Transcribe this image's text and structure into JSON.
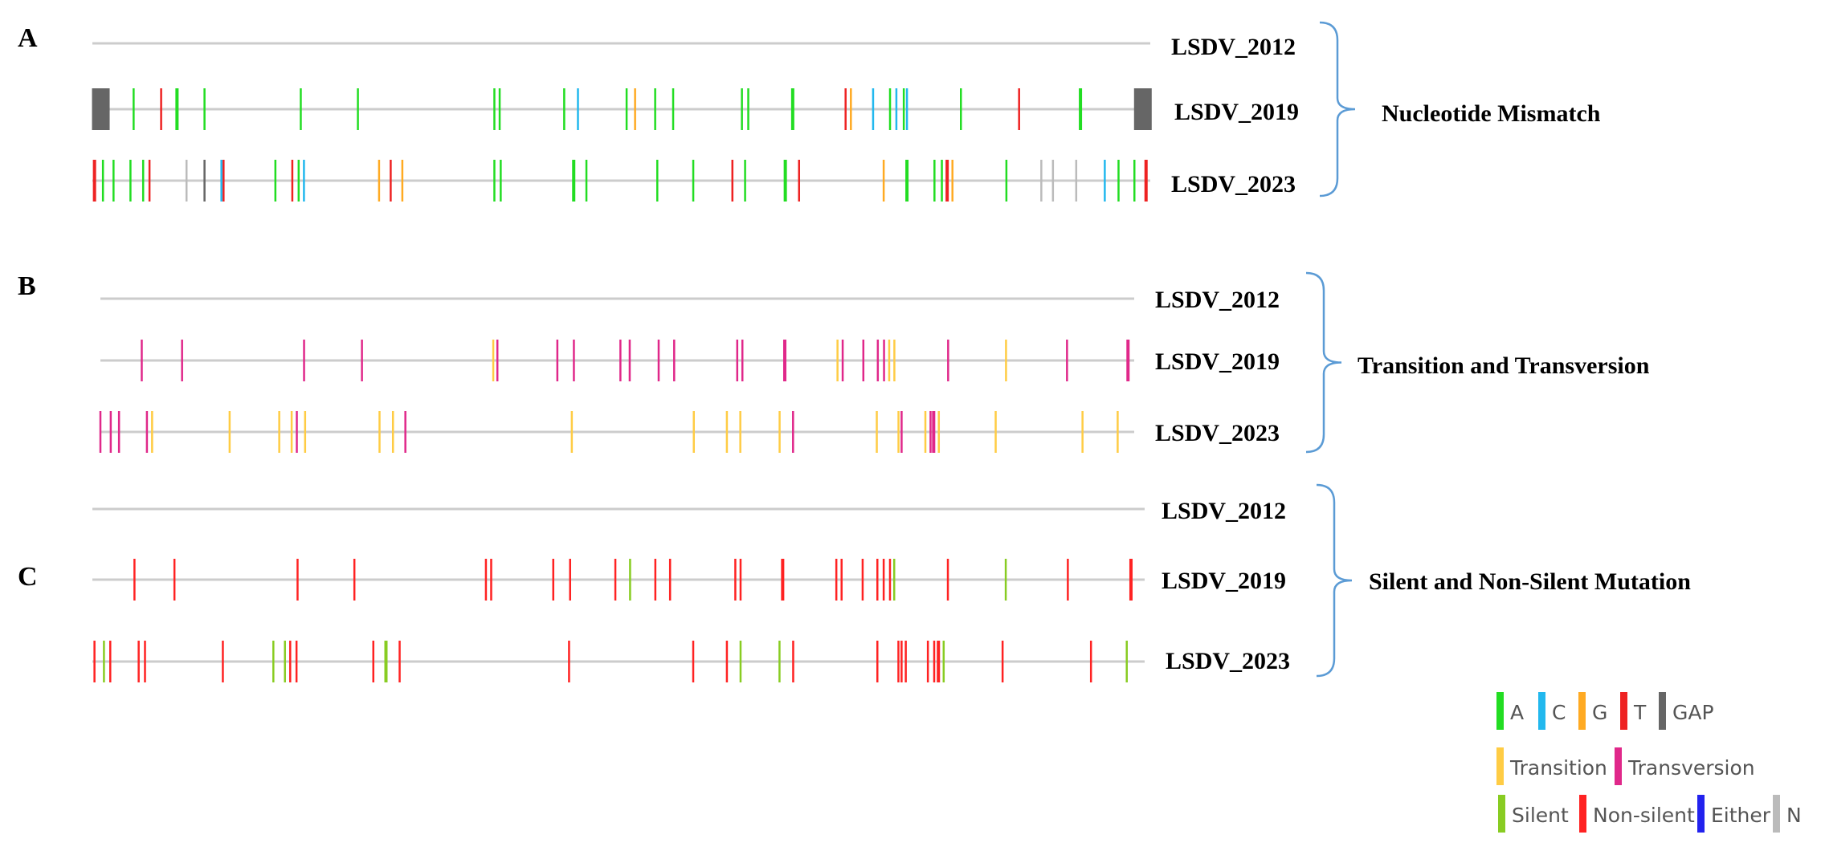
{
  "colors": {
    "A": "#22dd22",
    "C": "#22b8ee",
    "G": "#ffaa22",
    "T": "#ee2222",
    "GAP": "#666666",
    "N": "#bbbbbb",
    "Transition": "#ffcc44",
    "Transversion": "#e0288a",
    "Silent": "#88cc22",
    "Non-silent": "#ff2222",
    "Either": "#2222ee",
    "baseline": "#cccccc",
    "bracket": "#5b9bd5"
  },
  "panels": [
    {
      "id": "A",
      "letter": "A",
      "group_label": "Nucleotide Mismatch",
      "rows": [
        {
          "label": "LSDV_2012",
          "marks": []
        },
        {
          "label": "LSDV_2019",
          "marks": [
            {
              "x": 0.008,
              "c": "GAP",
              "w": "block"
            },
            {
              "x": 0.039,
              "c": "A"
            },
            {
              "x": 0.065,
              "c": "T"
            },
            {
              "x": 0.08,
              "c": "A",
              "s": "strong"
            },
            {
              "x": 0.106,
              "c": "A"
            },
            {
              "x": 0.197,
              "c": "A"
            },
            {
              "x": 0.251,
              "c": "A"
            },
            {
              "x": 0.38,
              "c": "A"
            },
            {
              "x": 0.385,
              "c": "A"
            },
            {
              "x": 0.446,
              "c": "A"
            },
            {
              "x": 0.459,
              "c": "C"
            },
            {
              "x": 0.505,
              "c": "A"
            },
            {
              "x": 0.513,
              "c": "G"
            },
            {
              "x": 0.532,
              "c": "A"
            },
            {
              "x": 0.549,
              "c": "A"
            },
            {
              "x": 0.614,
              "c": "A"
            },
            {
              "x": 0.62,
              "c": "A"
            },
            {
              "x": 0.662,
              "c": "A",
              "s": "strong"
            },
            {
              "x": 0.712,
              "c": "T"
            },
            {
              "x": 0.717,
              "c": "G"
            },
            {
              "x": 0.738,
              "c": "C"
            },
            {
              "x": 0.754,
              "c": "A"
            },
            {
              "x": 0.76,
              "c": "C"
            },
            {
              "x": 0.767,
              "c": "A"
            },
            {
              "x": 0.77,
              "c": "C"
            },
            {
              "x": 0.821,
              "c": "A"
            },
            {
              "x": 0.876,
              "c": "T"
            },
            {
              "x": 0.934,
              "c": "A",
              "s": "strong"
            },
            {
              "x": 0.993,
              "c": "GAP",
              "w": "block"
            }
          ]
        },
        {
          "label": "LSDV_2023",
          "marks": [
            {
              "x": 0.002,
              "c": "T",
              "s": "strong"
            },
            {
              "x": 0.01,
              "c": "A"
            },
            {
              "x": 0.02,
              "c": "A"
            },
            {
              "x": 0.036,
              "c": "A"
            },
            {
              "x": 0.048,
              "c": "A"
            },
            {
              "x": 0.054,
              "c": "T"
            },
            {
              "x": 0.089,
              "c": "N"
            },
            {
              "x": 0.106,
              "c": "GAP"
            },
            {
              "x": 0.122,
              "c": "C"
            },
            {
              "x": 0.124,
              "c": "T"
            },
            {
              "x": 0.173,
              "c": "A"
            },
            {
              "x": 0.189,
              "c": "T"
            },
            {
              "x": 0.195,
              "c": "A"
            },
            {
              "x": 0.2,
              "c": "C"
            },
            {
              "x": 0.271,
              "c": "G"
            },
            {
              "x": 0.282,
              "c": "T"
            },
            {
              "x": 0.293,
              "c": "G"
            },
            {
              "x": 0.38,
              "c": "A"
            },
            {
              "x": 0.386,
              "c": "A"
            },
            {
              "x": 0.455,
              "c": "A",
              "s": "strong"
            },
            {
              "x": 0.467,
              "c": "A"
            },
            {
              "x": 0.534,
              "c": "A"
            },
            {
              "x": 0.568,
              "c": "A"
            },
            {
              "x": 0.605,
              "c": "T"
            },
            {
              "x": 0.617,
              "c": "A"
            },
            {
              "x": 0.655,
              "c": "A",
              "s": "strong"
            },
            {
              "x": 0.668,
              "c": "T"
            },
            {
              "x": 0.748,
              "c": "G"
            },
            {
              "x": 0.77,
              "c": "A",
              "s": "strong"
            },
            {
              "x": 0.796,
              "c": "A"
            },
            {
              "x": 0.803,
              "c": "A"
            },
            {
              "x": 0.808,
              "c": "T",
              "s": "strong"
            },
            {
              "x": 0.813,
              "c": "G"
            },
            {
              "x": 0.864,
              "c": "A"
            },
            {
              "x": 0.897,
              "c": "N"
            },
            {
              "x": 0.908,
              "c": "N"
            },
            {
              "x": 0.93,
              "c": "N"
            },
            {
              "x": 0.957,
              "c": "C"
            },
            {
              "x": 0.97,
              "c": "A"
            },
            {
              "x": 0.985,
              "c": "A"
            },
            {
              "x": 0.996,
              "c": "T",
              "s": "strong"
            }
          ]
        }
      ]
    },
    {
      "id": "B",
      "letter": "B",
      "group_label": "Transition  and Transversion",
      "rows": [
        {
          "label": "LSDV_2012",
          "marks": []
        },
        {
          "label": "LSDV_2019",
          "marks": [
            {
              "x": 0.04,
              "c": "Transversion"
            },
            {
              "x": 0.079,
              "c": "Transversion"
            },
            {
              "x": 0.197,
              "c": "Transversion"
            },
            {
              "x": 0.253,
              "c": "Transversion"
            },
            {
              "x": 0.38,
              "c": "Transition"
            },
            {
              "x": 0.384,
              "c": "Transversion"
            },
            {
              "x": 0.442,
              "c": "Transversion"
            },
            {
              "x": 0.458,
              "c": "Transversion"
            },
            {
              "x": 0.503,
              "c": "Transversion"
            },
            {
              "x": 0.512,
              "c": "Transversion"
            },
            {
              "x": 0.54,
              "c": "Transversion"
            },
            {
              "x": 0.555,
              "c": "Transversion"
            },
            {
              "x": 0.616,
              "c": "Transversion"
            },
            {
              "x": 0.621,
              "c": "Transversion"
            },
            {
              "x": 0.662,
              "c": "Transversion",
              "s": "strong"
            },
            {
              "x": 0.713,
              "c": "Transition"
            },
            {
              "x": 0.718,
              "c": "Transversion"
            },
            {
              "x": 0.738,
              "c": "Transversion"
            },
            {
              "x": 0.752,
              "c": "Transversion"
            },
            {
              "x": 0.758,
              "c": "Transversion"
            },
            {
              "x": 0.763,
              "c": "Transition"
            },
            {
              "x": 0.768,
              "c": "Transition"
            },
            {
              "x": 0.82,
              "c": "Transversion"
            },
            {
              "x": 0.876,
              "c": "Transition"
            },
            {
              "x": 0.935,
              "c": "Transversion"
            },
            {
              "x": 0.994,
              "c": "Transversion",
              "s": "strong"
            }
          ]
        },
        {
          "label": "LSDV_2023",
          "marks": [
            {
              "x": 0.0,
              "c": "Transversion"
            },
            {
              "x": 0.01,
              "c": "Transversion"
            },
            {
              "x": 0.018,
              "c": "Transversion"
            },
            {
              "x": 0.045,
              "c": "Transversion"
            },
            {
              "x": 0.05,
              "c": "Transition"
            },
            {
              "x": 0.125,
              "c": "Transition"
            },
            {
              "x": 0.173,
              "c": "Transition"
            },
            {
              "x": 0.185,
              "c": "Transition"
            },
            {
              "x": 0.19,
              "c": "Transversion"
            },
            {
              "x": 0.198,
              "c": "Transition"
            },
            {
              "x": 0.27,
              "c": "Transition"
            },
            {
              "x": 0.283,
              "c": "Transition"
            },
            {
              "x": 0.295,
              "c": "Transversion"
            },
            {
              "x": 0.456,
              "c": "Transition"
            },
            {
              "x": 0.574,
              "c": "Transition"
            },
            {
              "x": 0.606,
              "c": "Transition"
            },
            {
              "x": 0.619,
              "c": "Transition"
            },
            {
              "x": 0.657,
              "c": "Transition"
            },
            {
              "x": 0.67,
              "c": "Transversion"
            },
            {
              "x": 0.751,
              "c": "Transition"
            },
            {
              "x": 0.772,
              "c": "Transition"
            },
            {
              "x": 0.775,
              "c": "Transversion"
            },
            {
              "x": 0.798,
              "c": "Transition"
            },
            {
              "x": 0.803,
              "c": "Transversion"
            },
            {
              "x": 0.806,
              "c": "Transversion",
              "s": "strong"
            },
            {
              "x": 0.811,
              "c": "Transition"
            },
            {
              "x": 0.866,
              "c": "Transition"
            },
            {
              "x": 0.95,
              "c": "Transition"
            },
            {
              "x": 0.984,
              "c": "Transition"
            }
          ]
        }
      ]
    },
    {
      "id": "C",
      "letter": "C",
      "group_label": "Silent and Non-Silent Mutation",
      "rows": [
        {
          "label": "LSDV_2012",
          "marks": []
        },
        {
          "label": "LSDV_2019",
          "marks": [
            {
              "x": 0.04,
              "c": "Non-silent"
            },
            {
              "x": 0.078,
              "c": "Non-silent"
            },
            {
              "x": 0.195,
              "c": "Non-silent"
            },
            {
              "x": 0.249,
              "c": "Non-silent"
            },
            {
              "x": 0.374,
              "c": "Non-silent"
            },
            {
              "x": 0.379,
              "c": "Non-silent"
            },
            {
              "x": 0.438,
              "c": "Non-silent"
            },
            {
              "x": 0.454,
              "c": "Non-silent"
            },
            {
              "x": 0.497,
              "c": "Non-silent"
            },
            {
              "x": 0.511,
              "c": "Silent"
            },
            {
              "x": 0.535,
              "c": "Non-silent"
            },
            {
              "x": 0.549,
              "c": "Non-silent"
            },
            {
              "x": 0.611,
              "c": "Non-silent"
            },
            {
              "x": 0.616,
              "c": "Non-silent"
            },
            {
              "x": 0.656,
              "c": "Non-silent",
              "s": "strong"
            },
            {
              "x": 0.707,
              "c": "Non-silent"
            },
            {
              "x": 0.712,
              "c": "Non-silent"
            },
            {
              "x": 0.732,
              "c": "Non-silent"
            },
            {
              "x": 0.746,
              "c": "Non-silent"
            },
            {
              "x": 0.752,
              "c": "Non-silent"
            },
            {
              "x": 0.758,
              "c": "Non-silent"
            },
            {
              "x": 0.762,
              "c": "Silent"
            },
            {
              "x": 0.813,
              "c": "Non-silent"
            },
            {
              "x": 0.868,
              "c": "Silent"
            },
            {
              "x": 0.927,
              "c": "Non-silent"
            },
            {
              "x": 0.987,
              "c": "Non-silent",
              "s": "strong"
            }
          ]
        },
        {
          "label": "LSDV_2023",
          "marks": [
            {
              "x": 0.002,
              "c": "Non-silent"
            },
            {
              "x": 0.011,
              "c": "Silent"
            },
            {
              "x": 0.017,
              "c": "Non-silent"
            },
            {
              "x": 0.044,
              "c": "Non-silent"
            },
            {
              "x": 0.05,
              "c": "Non-silent"
            },
            {
              "x": 0.124,
              "c": "Non-silent"
            },
            {
              "x": 0.172,
              "c": "Silent"
            },
            {
              "x": 0.183,
              "c": "Silent"
            },
            {
              "x": 0.188,
              "c": "Non-silent"
            },
            {
              "x": 0.194,
              "c": "Non-silent"
            },
            {
              "x": 0.267,
              "c": "Non-silent"
            },
            {
              "x": 0.279,
              "c": "Silent",
              "s": "strong"
            },
            {
              "x": 0.292,
              "c": "Non-silent"
            },
            {
              "x": 0.453,
              "c": "Non-silent"
            },
            {
              "x": 0.571,
              "c": "Non-silent"
            },
            {
              "x": 0.603,
              "c": "Non-silent"
            },
            {
              "x": 0.616,
              "c": "Silent"
            },
            {
              "x": 0.653,
              "c": "Silent"
            },
            {
              "x": 0.666,
              "c": "Non-silent"
            },
            {
              "x": 0.746,
              "c": "Non-silent"
            },
            {
              "x": 0.766,
              "c": "Non-silent"
            },
            {
              "x": 0.769,
              "c": "Non-silent"
            },
            {
              "x": 0.773,
              "c": "Non-silent"
            },
            {
              "x": 0.794,
              "c": "Non-silent"
            },
            {
              "x": 0.8,
              "c": "Non-silent"
            },
            {
              "x": 0.804,
              "c": "Non-silent",
              "s": "strong"
            },
            {
              "x": 0.809,
              "c": "Silent"
            },
            {
              "x": 0.865,
              "c": "Non-silent"
            },
            {
              "x": 0.949,
              "c": "Non-silent"
            },
            {
              "x": 0.983,
              "c": "Silent"
            }
          ]
        }
      ]
    }
  ],
  "legend": [
    {
      "items": [
        {
          "key": "A",
          "text": "A"
        },
        {
          "key": "C",
          "text": "C"
        },
        {
          "key": "G",
          "text": "G"
        },
        {
          "key": "T",
          "text": "T"
        },
        {
          "key": "GAP",
          "text": "GAP"
        }
      ]
    },
    {
      "items": [
        {
          "key": "Transition",
          "text": "Transition"
        },
        {
          "key": "Transversion",
          "text": "Transversion"
        }
      ]
    },
    {
      "items": [
        {
          "key": "Silent",
          "text": "Silent"
        },
        {
          "key": "Non-silent",
          "text": "Non-silent"
        },
        {
          "key": "Either",
          "text": "Either"
        },
        {
          "key": "N",
          "text": "N"
        }
      ]
    }
  ]
}
